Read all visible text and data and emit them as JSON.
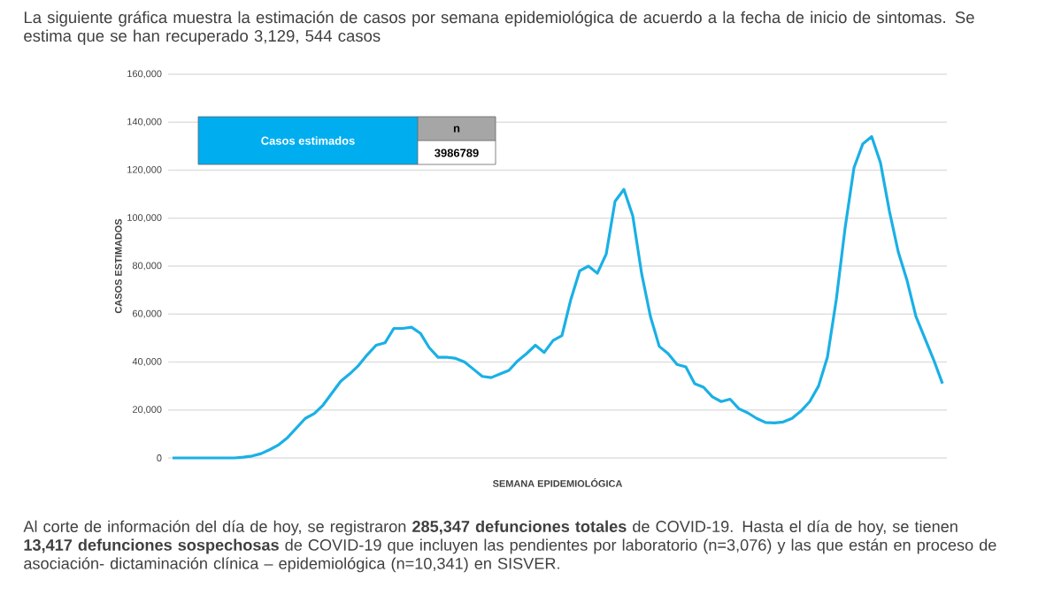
{
  "chart_data": {
    "type": "line",
    "title": "La siguiente gráfica muestra la estimación de casos por semana epidemiológica de acuerdo a la fecha de inicio de sintomas. Se estima que se han recuperado 3,129, 544 casos",
    "xlabel": "SEMANA EPIDEMIOLÓGICA",
    "ylabel": "CASOS ESTIMADOS",
    "categories": [
      null,
      null,
      null,
      null,
      null,
      null,
      null,
      null,
      null,
      null,
      null,
      null,
      null,
      null,
      null,
      null,
      null,
      null,
      null,
      null,
      null,
      null,
      null,
      null,
      null,
      null,
      null,
      null,
      null,
      null,
      null,
      null,
      null,
      null,
      null,
      null,
      null,
      null,
      null,
      null,
      null,
      null,
      null,
      null,
      null,
      null,
      null,
      null,
      null,
      null,
      null,
      null,
      null,
      null,
      null,
      null,
      null,
      null,
      null,
      null,
      null,
      null,
      null,
      null,
      null,
      null,
      null,
      null,
      null,
      null,
      null,
      null,
      null,
      null,
      null,
      null,
      null,
      null,
      null,
      null,
      null,
      null,
      null,
      null,
      null,
      null,
      null,
      null
    ],
    "series": [
      {
        "color": "#1ab0e6",
        "values": [
          0,
          0,
          0,
          0,
          0,
          0,
          0,
          0,
          300,
          800,
          1800,
          3500,
          5500,
          8500,
          12500,
          16500,
          18500,
          22000,
          27000,
          32000,
          35000,
          38500,
          43000,
          47000,
          48000,
          54000,
          54000,
          54500,
          52000,
          46000,
          42000,
          42000,
          41500,
          40000,
          37000,
          34000,
          33500,
          35000,
          36500,
          40500,
          43500,
          47000,
          44000,
          49000,
          51000,
          66000,
          78000,
          80000,
          77000,
          85000,
          107000,
          112000,
          101000,
          77000,
          59000,
          46500,
          43500,
          39000,
          38000,
          31000,
          29500,
          25500,
          23500,
          24500,
          20500,
          18800,
          16500,
          14800,
          14600,
          15000,
          16500,
          19500,
          23500,
          30000,
          42000,
          66000,
          96000,
          121000,
          131000,
          134000,
          123000,
          103000,
          86000,
          74000,
          59000,
          50000,
          41000,
          31000
        ]
      }
    ],
    "ylim": [
      0,
      160000
    ],
    "yticks": [
      0,
      {
        "value": 20000,
        "label": "20,000"
      },
      {
        "value": 40000,
        "label": "40,000"
      },
      {
        "value": 60000,
        "label": "60,000"
      },
      {
        "value": 80000,
        "label": "80,000"
      },
      {
        "value": 100000,
        "label": "100,000"
      },
      {
        "value": 120000,
        "label": "120,000"
      },
      {
        "value": 140000,
        "label": "140,000"
      },
      {
        "value": 160000,
        "label": "160,000"
      }
    ],
    "grid": "y",
    "marker": "none",
    "line_style": "solid",
    "annotations": [
      "Casos estimados",
      "n",
      "3986789",
      "Al corte de información del día de hoy, se registraron **285,347 defunciones totales** de COVID-19. Hasta el día de hoy, se tienen **13,417 defunciones sospechosas** de COVID-19 que incluyen las pendientes por laboratorio (n=3,076) y las que están en proceso de asociación- dictaminación clínica – epidemiológica (n=10,341) en SISVER."
    ]
  }
}
